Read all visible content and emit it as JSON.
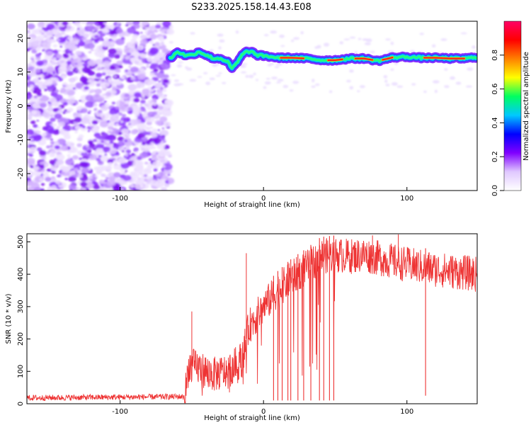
{
  "title": "S233.2025.158.14.43.E08",
  "chart_data": [
    {
      "type": "heatmap",
      "xlabel": "Height of straight line (km)",
      "ylabel": "Frequency (Hz)",
      "xlim": [
        -165,
        149
      ],
      "ylim": [
        -25,
        25
      ],
      "xticks": [
        -100,
        0,
        100
      ],
      "yticks": [
        -20,
        -10,
        0,
        10,
        20
      ],
      "colorbar": {
        "label": "Normalized spectral amplitude",
        "range": [
          0,
          1
        ],
        "ticks": [
          "0.0",
          "0.2",
          "0.4",
          "0.6",
          "0.8"
        ],
        "colors": [
          "#ffffff",
          "#e0c8ff",
          "#8000ff",
          "#0000ff",
          "#00c8ff",
          "#00ff60",
          "#ffff00",
          "#ff8000",
          "#ff0000",
          "#ff0066"
        ]
      },
      "noise_region": {
        "x": [
          -165,
          -65
        ],
        "y": [
          -25,
          25
        ]
      },
      "ridge": {
        "x": [
          -65,
          -60,
          -55,
          -50,
          -45,
          -40,
          -35,
          -30,
          -25,
          -22,
          -18,
          -15,
          -12,
          -8,
          -5,
          0,
          5,
          10,
          20,
          30,
          40,
          50,
          60,
          70,
          80,
          90,
          100,
          110,
          120,
          130,
          140,
          149
        ],
        "y": [
          14,
          16,
          15,
          15,
          16,
          15,
          14,
          14,
          13,
          11,
          13,
          15,
          16,
          16,
          15,
          14.8,
          14.5,
          14.2,
          14.2,
          14.0,
          13.5,
          13.5,
          14.0,
          14.0,
          13.3,
          14.3,
          14.5,
          14.2,
          14.2,
          14.0,
          14.0,
          14.4
        ]
      },
      "hot_segments": [
        [
          12,
          28
        ],
        [
          45,
          55
        ],
        [
          64,
          76
        ],
        [
          83,
          90
        ],
        [
          112,
          140
        ]
      ]
    },
    {
      "type": "line",
      "xlabel": "Height of straight line (km)",
      "ylabel": "SNR (10 * v/v)",
      "xlim": [
        -165,
        149
      ],
      "ylim": [
        0,
        525
      ],
      "xticks": [
        -100,
        0,
        100
      ],
      "yticks": [
        0,
        100,
        200,
        300,
        400,
        500
      ],
      "color": "#ee3333",
      "trend": {
        "x": [
          -165,
          -55,
          -52,
          -45,
          -35,
          -25,
          -15,
          -10,
          0,
          10,
          20,
          30,
          40,
          50,
          60,
          70,
          80,
          100,
          120,
          149
        ],
        "y": [
          18,
          22,
          120,
          110,
          90,
          100,
          140,
          240,
          300,
          350,
          390,
          420,
          455,
          460,
          455,
          460,
          450,
          430,
          415,
          400
        ]
      },
      "spikes": [
        {
          "x": -50,
          "y": 285
        },
        {
          "x": -12,
          "y": 465
        },
        {
          "x": 76,
          "y": 520
        },
        {
          "x": 94,
          "y": 523
        }
      ],
      "dropouts": [
        {
          "x": 7,
          "y": 10
        },
        {
          "x": 10,
          "y": 10
        },
        {
          "x": 13,
          "y": 10
        },
        {
          "x": 17,
          "y": 10
        },
        {
          "x": 19,
          "y": 10
        },
        {
          "x": 24,
          "y": 10
        },
        {
          "x": 28,
          "y": 10
        },
        {
          "x": 33,
          "y": 10
        },
        {
          "x": 39,
          "y": 10
        },
        {
          "x": 42,
          "y": 10
        },
        {
          "x": 46,
          "y": 10
        },
        {
          "x": 49,
          "y": 10
        },
        {
          "x": 113,
          "y": 25
        }
      ]
    }
  ]
}
